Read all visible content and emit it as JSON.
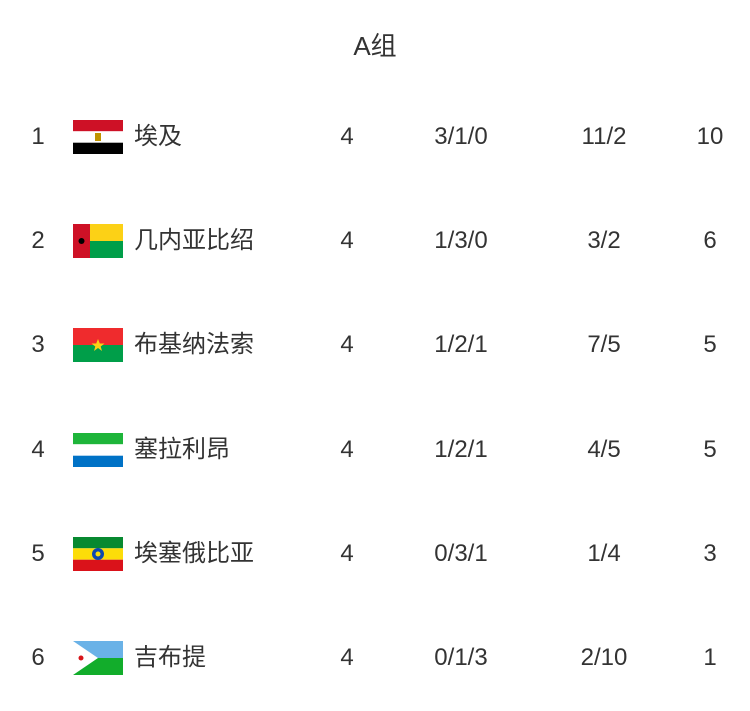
{
  "title": "A组",
  "teams": [
    {
      "rank": "1",
      "name": "埃及",
      "played": "4",
      "wdl": "3/1/0",
      "goals": "11/2",
      "points": "10",
      "flag": {
        "type": "egypt",
        "colors": [
          "#ce1126",
          "#ffffff",
          "#000000",
          "#c09300"
        ]
      }
    },
    {
      "rank": "2",
      "name": "几内亚比绍",
      "played": "4",
      "wdl": "1/3/0",
      "goals": "3/2",
      "points": "6",
      "flag": {
        "type": "guinea-bissau",
        "colors": [
          "#ce1126",
          "#fcd116",
          "#009e49",
          "#000000"
        ]
      }
    },
    {
      "rank": "3",
      "name": "布基纳法索",
      "played": "4",
      "wdl": "1/2/1",
      "goals": "7/5",
      "points": "5",
      "flag": {
        "type": "burkina-faso",
        "colors": [
          "#ef2b2d",
          "#009e49",
          "#fcd116"
        ]
      }
    },
    {
      "rank": "4",
      "name": "塞拉利昂",
      "played": "4",
      "wdl": "1/2/1",
      "goals": "4/5",
      "points": "5",
      "flag": {
        "type": "sierra-leone",
        "colors": [
          "#1eb53a",
          "#ffffff",
          "#0072c6"
        ]
      }
    },
    {
      "rank": "5",
      "name": "埃塞俄比亚",
      "played": "4",
      "wdl": "0/3/1",
      "goals": "1/4",
      "points": "3",
      "flag": {
        "type": "ethiopia",
        "colors": [
          "#078930",
          "#fcdd09",
          "#da121a",
          "#0f47af"
        ]
      }
    },
    {
      "rank": "6",
      "name": "吉布提",
      "played": "4",
      "wdl": "0/1/3",
      "goals": "2/10",
      "points": "1",
      "flag": {
        "type": "djibouti",
        "colors": [
          "#6ab2e7",
          "#12ad2b",
          "#ffffff",
          "#d7141a"
        ]
      }
    }
  ]
}
